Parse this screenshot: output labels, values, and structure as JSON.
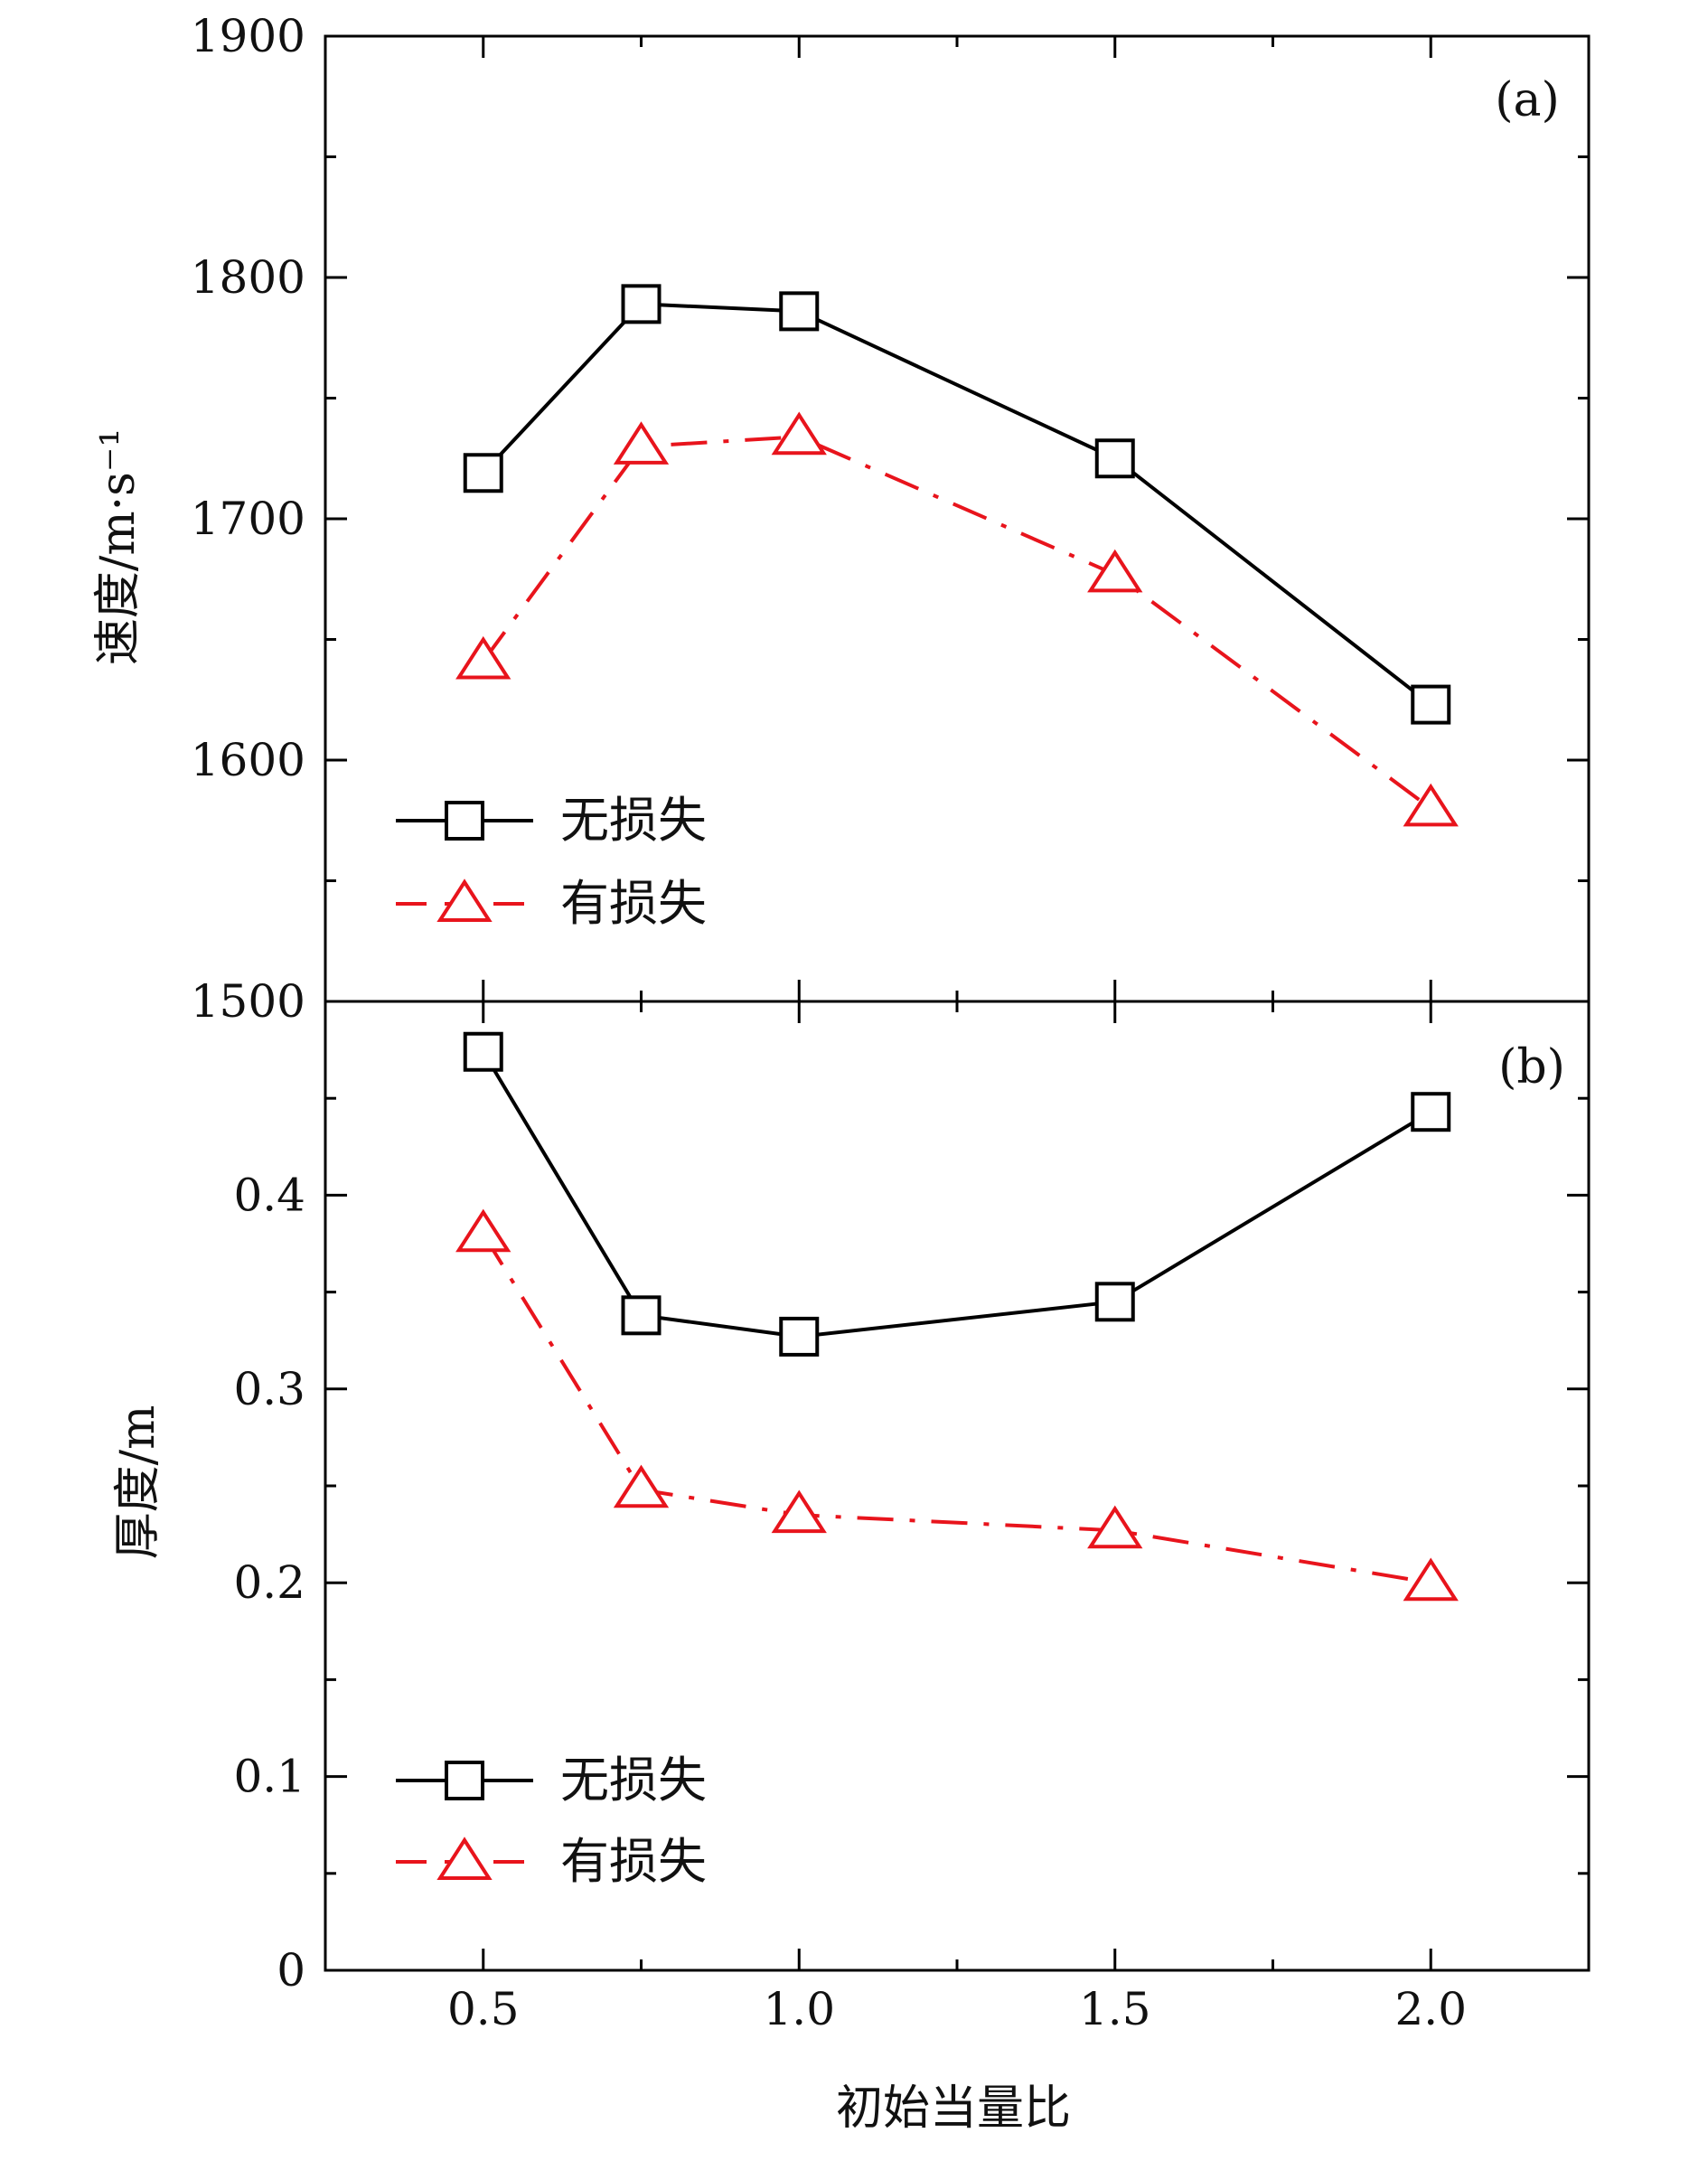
{
  "chart_data": [
    {
      "type": "line",
      "panel_label": "(a)",
      "ylabel": "速度/m·s⁻¹",
      "ylim": [
        1500,
        1900
      ],
      "yticks": [
        "1500",
        "1600",
        "1700",
        "1800",
        "1900"
      ],
      "x": [
        0.5,
        0.75,
        1.0,
        1.5,
        2.0
      ],
      "series": [
        {
          "name": "无损失",
          "color": "#000000",
          "marker": "square",
          "line_style": "solid",
          "values": [
            1719,
            1789,
            1786,
            1725,
            1623
          ]
        },
        {
          "name": "有损失",
          "color": "#e8141c",
          "marker": "triangle",
          "line_style": "dash-dot",
          "values": [
            1641,
            1730,
            1734,
            1677,
            1580
          ]
        }
      ],
      "legend_position": "bottom-left"
    },
    {
      "type": "line",
      "panel_label": "(b)",
      "ylabel": "厚度/m",
      "ylim": [
        0,
        0.5
      ],
      "yticks": [
        "0",
        "0.1",
        "0.2",
        "0.3",
        "0.4"
      ],
      "xlabel": "初始当量比",
      "xlim": [
        0.25,
        2.25
      ],
      "xticks": [
        "0.5",
        "1.0",
        "1.5",
        "2.0"
      ],
      "x": [
        0.5,
        0.75,
        1.0,
        1.5,
        2.0
      ],
      "series": [
        {
          "name": "无损失",
          "color": "#000000",
          "marker": "square",
          "line_style": "solid",
          "values": [
            0.474,
            0.338,
            0.327,
            0.345,
            0.443
          ]
        },
        {
          "name": "有损失",
          "color": "#e8141c",
          "marker": "triangle",
          "line_style": "dash-dot",
          "values": [
            0.38,
            0.248,
            0.235,
            0.227,
            0.2
          ]
        }
      ],
      "legend_position": "bottom-left"
    }
  ]
}
